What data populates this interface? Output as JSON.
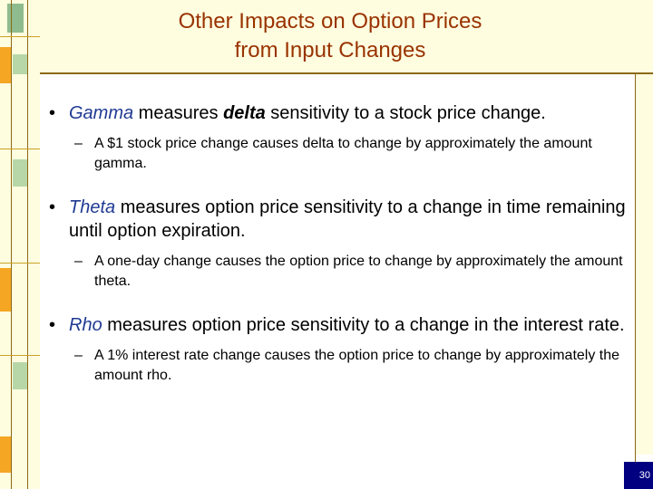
{
  "slide": {
    "title_line1": "Other Impacts on Option Prices",
    "title_line2": "from Input Changes",
    "bullets": [
      {
        "term": "Gamma",
        "text_a": " measures ",
        "emph": "delta",
        "text_b": " sensitivity to a stock price change.",
        "sub": "A $1 stock price change causes delta to change by approximately the amount gamma."
      },
      {
        "term": "Theta",
        "text": " measures option price sensitivity to a change in time remaining until option expiration.",
        "sub": "A one-day change causes the option price to change by approximately the amount theta."
      },
      {
        "term": "Rho",
        "text": " measures option price sensitivity to a change in the interest rate.",
        "sub": "A 1% interest rate change causes the option price to change by approximately the amount rho."
      }
    ],
    "bullet_glyph": "•",
    "dash_glyph": "–",
    "page_number": "30"
  },
  "colors": {
    "title": "#993300",
    "term": "#1f3a93",
    "orange": "#f5a623",
    "cream": "#fffde0",
    "navy": "#000080"
  }
}
